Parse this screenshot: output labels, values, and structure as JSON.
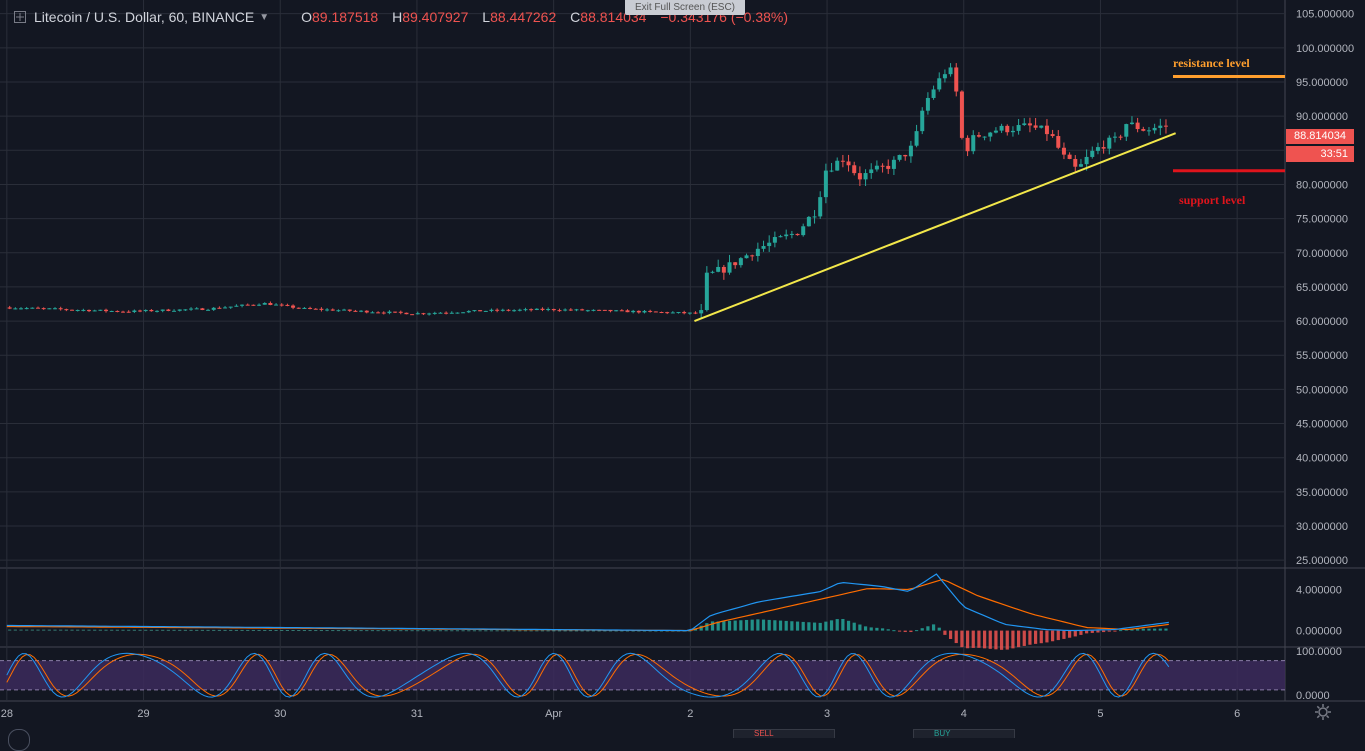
{
  "header": {
    "symbol": "Litecoin / U.S. Dollar, 60, BINANCE",
    "o_label": "O",
    "open": "89.187518",
    "h_label": "H",
    "high": "89.407927",
    "l_label": "L",
    "low": "88.447262",
    "c_label": "C",
    "close": "88.814034",
    "change": "−0.343176 (−0.38%)"
  },
  "tooltip": "Exit Full Screen (ESC)",
  "annotations": {
    "resistance": "resistance level",
    "support": "support level"
  },
  "price_label": "88.814034",
  "countdown": "33:51",
  "bottom_buttons": {
    "sell": "SELL",
    "buy": "BUY"
  },
  "colors": {
    "background": "#131722",
    "grid": "#2a2e39",
    "up": "#26a69a",
    "down": "#ef5350",
    "trendline": "#f2e74a",
    "resistance": "#ff9f2e",
    "support": "#e0141c",
    "macd": "#2196f3",
    "signal": "#ff6d00",
    "rsi_band": "#3c2a5c"
  },
  "icons": {
    "crosshair": "crosshair-icon",
    "dropdown": "chevron-down-icon",
    "settings": "gear-icon"
  },
  "chart_data": {
    "type": "candlestick",
    "x_ticks": [
      "28",
      "29",
      "30",
      "31",
      "Apr",
      "2",
      "3",
      "4",
      "5",
      "6"
    ],
    "x_domain": [
      -0.05,
      9.35
    ],
    "price_panel": {
      "ylim": [
        24.0,
        107.0
      ],
      "y_ticks": [
        "105.000000",
        "100.000000",
        "95.000000",
        "90.000000",
        "85.000000",
        "80.000000",
        "75.000000",
        "70.000000",
        "65.000000",
        "60.000000",
        "55.000000",
        "50.000000",
        "45.000000",
        "40.000000",
        "35.000000",
        "30.000000",
        "25.000000"
      ],
      "anchors": [
        [
          0.0,
          62.0
        ],
        [
          0.9,
          61.4
        ],
        [
          1.5,
          61.8
        ],
        [
          1.9,
          62.6
        ],
        [
          2.2,
          61.8
        ],
        [
          3.0,
          61.1
        ],
        [
          3.5,
          61.5
        ],
        [
          4.0,
          61.7
        ],
        [
          4.6,
          61.4
        ],
        [
          5.1,
          61.1
        ],
        [
          5.14,
          66.5
        ],
        [
          5.3,
          68.0
        ],
        [
          5.5,
          70.5
        ],
        [
          5.8,
          73.0
        ],
        [
          5.95,
          76.5
        ],
        [
          6.0,
          82.0
        ],
        [
          6.15,
          84.0
        ],
        [
          6.25,
          81.0
        ],
        [
          6.5,
          83.0
        ],
        [
          6.65,
          85.5
        ],
        [
          6.7,
          89.0
        ],
        [
          6.72,
          91.0
        ],
        [
          6.78,
          93.5
        ],
        [
          6.85,
          95.5
        ],
        [
          6.9,
          97.0
        ],
        [
          6.95,
          96.0
        ],
        [
          7.0,
          88.0
        ],
        [
          7.02,
          84.5
        ],
        [
          7.1,
          87.0
        ],
        [
          7.25,
          88.0
        ],
        [
          7.5,
          88.5
        ],
        [
          7.65,
          87.5
        ],
        [
          7.75,
          84.0
        ],
        [
          7.85,
          82.0
        ],
        [
          7.95,
          84.5
        ],
        [
          8.05,
          86.0
        ],
        [
          8.15,
          86.5
        ],
        [
          8.2,
          89.0
        ],
        [
          8.35,
          88.0
        ],
        [
          8.5,
          88.6
        ]
      ],
      "trendline": [
        [
          5.03,
          60.0
        ],
        [
          8.55,
          87.5
        ]
      ],
      "resistance_level": 95.8,
      "support_level": 82.0,
      "last_price": 88.814034
    },
    "macd_panel": {
      "ylim": [
        -1.5,
        6.0
      ],
      "y_ticks": [
        "4.000000",
        "0.000000"
      ],
      "macd_anchors": [
        [
          0.0,
          0.5
        ],
        [
          5.0,
          0.0
        ],
        [
          5.15,
          1.5
        ],
        [
          5.5,
          2.8
        ],
        [
          5.95,
          3.8
        ],
        [
          6.1,
          4.7
        ],
        [
          6.4,
          4.3
        ],
        [
          6.6,
          3.8
        ],
        [
          6.8,
          5.5
        ],
        [
          7.0,
          2.3
        ],
        [
          7.3,
          0.6
        ],
        [
          7.6,
          0.1
        ],
        [
          7.8,
          0.0
        ],
        [
          8.1,
          0.1
        ],
        [
          8.5,
          0.8
        ]
      ],
      "signal_anchors": [
        [
          0.0,
          0.4
        ],
        [
          5.0,
          0.0
        ],
        [
          5.2,
          0.8
        ],
        [
          5.6,
          2.0
        ],
        [
          6.0,
          3.2
        ],
        [
          6.3,
          4.1
        ],
        [
          6.6,
          4.0
        ],
        [
          6.85,
          5.0
        ],
        [
          7.1,
          3.4
        ],
        [
          7.5,
          1.6
        ],
        [
          7.9,
          0.3
        ],
        [
          8.2,
          0.1
        ],
        [
          8.5,
          0.6
        ]
      ]
    },
    "rsi_panel": {
      "ylim": [
        -3,
        106
      ],
      "y_ticks": [
        "100.0000",
        "0.0000"
      ],
      "band": [
        20,
        80
      ]
    }
  }
}
